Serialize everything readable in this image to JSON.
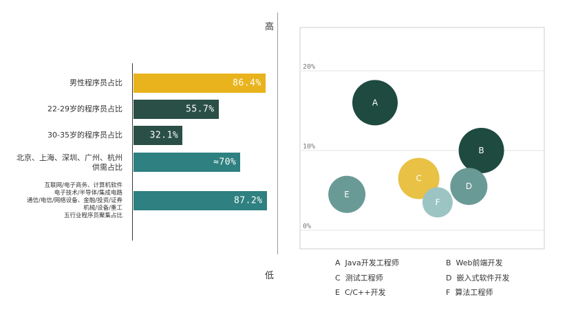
{
  "scale": {
    "high": "高",
    "low": "低"
  },
  "chart_data": [
    {
      "type": "bar",
      "orientation": "horizontal",
      "categories": [
        "男性程序员占比",
        "22-29岁的程序员占比",
        "30-35岁的程序员占比",
        "北京、上海、深圳、广州、杭州\n供需占比",
        "互联网/电子商务、计算机软件\n电子技术/半导体/集成电路\n通信/电信/网络设备、金融/投资/证券\n机械/设备/重工\n五行业程序员聚集占比"
      ],
      "values": [
        86.4,
        55.7,
        32.1,
        70,
        87.2
      ],
      "value_labels": [
        "86.4%",
        "55.7%",
        "32.1%",
        "≈70%",
        "87.2%"
      ],
      "colors": [
        "#e8b31c",
        "#2a4f46",
        "#2a4f46",
        "#2f8080",
        "#2f8080"
      ],
      "xlim": [
        0,
        100
      ]
    },
    {
      "type": "scatter",
      "bubble": true,
      "ylim": [
        0,
        20
      ],
      "y_ticks": [
        "0%",
        "10%",
        "20%"
      ],
      "points": [
        {
          "label": "A",
          "x": 1.2,
          "y": 16,
          "color": "#1e4a3f"
        },
        {
          "label": "B",
          "x": 4.6,
          "y": 10,
          "color": "#1e4a3f"
        },
        {
          "label": "C",
          "x": 2.6,
          "y": 6.5,
          "color": "#e8c145"
        },
        {
          "label": "D",
          "x": 4.2,
          "y": 5.5,
          "color": "#6a9a96"
        },
        {
          "label": "E",
          "x": 0.3,
          "y": 4.5,
          "color": "#6a9a96"
        },
        {
          "label": "F",
          "x": 3.2,
          "y": 3.5,
          "color": "#9cc4c2"
        }
      ],
      "xlim": [
        -1,
        5.6
      ],
      "legend": [
        {
          "key": "A",
          "name": "Java开发工程师"
        },
        {
          "key": "B",
          "name": "Web前端开发"
        },
        {
          "key": "C",
          "name": "测试工程师"
        },
        {
          "key": "D",
          "name": "嵌入式软件开发"
        },
        {
          "key": "E",
          "name": "C/C++开发"
        },
        {
          "key": "F",
          "name": "算法工程师"
        }
      ]
    }
  ]
}
